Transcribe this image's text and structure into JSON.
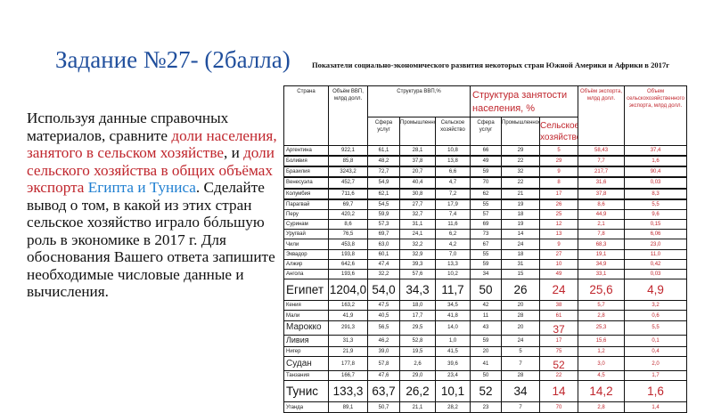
{
  "slide": {
    "title": "Задание №27- (2балла)",
    "subtitle": "Показатели социально-экономического развития некоторых стран Южной Америки и Африки в 2017г"
  },
  "task": {
    "segments": [
      {
        "text": "Используя данные справочных материалов, сравните ",
        "color": "default"
      },
      {
        "text": "доли населения, занятого в сельском хозяйстве",
        "color": "red"
      },
      {
        "text": ", и ",
        "color": "default"
      },
      {
        "text": "доли сельского хозяйства в общих объёмах экспорта",
        "color": "red"
      },
      {
        "text": " ",
        "color": "default"
      },
      {
        "text": "Египта и Туниса",
        "color": "blue"
      },
      {
        "text": ". Сделайте вывод о том, в какой из этих стран сельское хозяйство играло бóльшую роль в экономике в 2017 г. Для обоснования Вашего ответа запишите необходимые числовые данные и вычисления.",
        "color": "default"
      }
    ]
  },
  "colors": {
    "title": "#1f4e9c",
    "highlight_red": "#c0262d",
    "highlight_blue": "#1f7fd1"
  },
  "table": {
    "headers": {
      "country": "Страна",
      "gdp": "Объём ВВП, млрд долл.",
      "gdp_structure": "Структура ВВП,%",
      "employment_structure": "Структура занятости населения, %",
      "export": "Объём экспорта, млрд долл.",
      "agri_export": "Объем сельскохозяйственного экспорта, млрд долл.",
      "sub": [
        "Сфера услуг",
        "Промышленность",
        "Сельское хозяйство",
        "Сфера услуг",
        "Промышленность",
        "Сельское хозяйство"
      ]
    },
    "rows": [
      [
        "Аргентина",
        "922,1",
        "61,1",
        "28,1",
        "10,8",
        "66",
        "29",
        "5",
        "58,43",
        "37,4"
      ],
      [
        "Боливия",
        "85,8",
        "48,2",
        "37,8",
        "13,8",
        "49",
        "22",
        "29",
        "7,7",
        "1,6"
      ],
      [
        "Бразилия",
        "3243,2",
        "72,7",
        "20,7",
        "6,6",
        "59",
        "32",
        "9",
        "217,7",
        "90,4"
      ],
      [
        "Венесуэла",
        "452,7",
        "54,9",
        "40,4",
        "4,7",
        "70",
        "22",
        "8",
        "31,6",
        "0,03"
      ],
      [
        "Колумбия",
        "711,6",
        "62,1",
        "30,8",
        "7,2",
        "62",
        "21",
        "17",
        "37,8",
        "8,3"
      ],
      [
        "Парагвай",
        "69,7",
        "54,5",
        "27,7",
        "17,9",
        "55",
        "19",
        "26",
        "8,6",
        "5,5"
      ],
      [
        "Перу",
        "420,2",
        "59,9",
        "32,7",
        "7,4",
        "57",
        "18",
        "25",
        "44,9",
        "9,6"
      ],
      [
        "Суринам",
        "8,6",
        "57,3",
        "31,1",
        "11,6",
        "69",
        "19",
        "12",
        "2,1",
        "0,15"
      ],
      [
        "Уругвай",
        "76,5",
        "69,7",
        "24,1",
        "6,2",
        "73",
        "14",
        "13",
        "7,8",
        "6,06"
      ],
      [
        "Чили",
        "453,8",
        "63,0",
        "32,2",
        "4,2",
        "67",
        "24",
        "9",
        "68,3",
        "23,0"
      ],
      [
        "Эквадор",
        "193,8",
        "60,1",
        "32,9",
        "7,0",
        "55",
        "18",
        "27",
        "19,1",
        "11,0"
      ],
      [
        "Алжир",
        "642,6",
        "47,4",
        "39,3",
        "13,3",
        "59",
        "31",
        "10",
        "34,9",
        "0,42"
      ],
      [
        "Ангола",
        "193,6",
        "32,2",
        "57,6",
        "10,2",
        "34",
        "15",
        "49",
        "33,1",
        "0,03"
      ],
      [
        "Египет",
        "1204,0",
        "54,0",
        "34,3",
        "11,7",
        "50",
        "26",
        "24",
        "25,6",
        "4,9"
      ],
      [
        "Кения",
        "163,2",
        "47,5",
        "18,0",
        "34,5",
        "42",
        "20",
        "38",
        "5,7",
        "3,2"
      ],
      [
        "Мали",
        "41,9",
        "40,5",
        "17,7",
        "41,8",
        "11",
        "28",
        "61",
        "2,8",
        "0,6"
      ],
      [
        "Марокко",
        "291,3",
        "56,5",
        "29,5",
        "14,0",
        "43",
        "20",
        "37",
        "25,3",
        "5,5"
      ],
      [
        "Ливия",
        "31,3",
        "46,2",
        "52,8",
        "1,0",
        "59",
        "24",
        "17",
        "15,6",
        "0,1"
      ],
      [
        "Нигер",
        "21,9",
        "39,0",
        "19,5",
        "41,5",
        "20",
        "5",
        "75",
        "1,2",
        "0,4"
      ],
      [
        "Судан",
        "177,8",
        "57,8",
        "2,6",
        "39,6",
        "41",
        "7",
        "52",
        "3,0",
        "2,0"
      ],
      [
        "Танзания",
        "166,7",
        "47,6",
        "29,0",
        "23,4",
        "50",
        "28",
        "22",
        "4,5",
        "1,7"
      ],
      [
        "Тунис",
        "133,3",
        "63,7",
        "26,2",
        "10,1",
        "52",
        "34",
        "14",
        "14,2",
        "1,6"
      ],
      [
        "Уганда",
        "89,1",
        "50,7",
        "21,1",
        "28,2",
        "23",
        "7",
        "70",
        "2,8",
        "1,4"
      ]
    ]
  }
}
